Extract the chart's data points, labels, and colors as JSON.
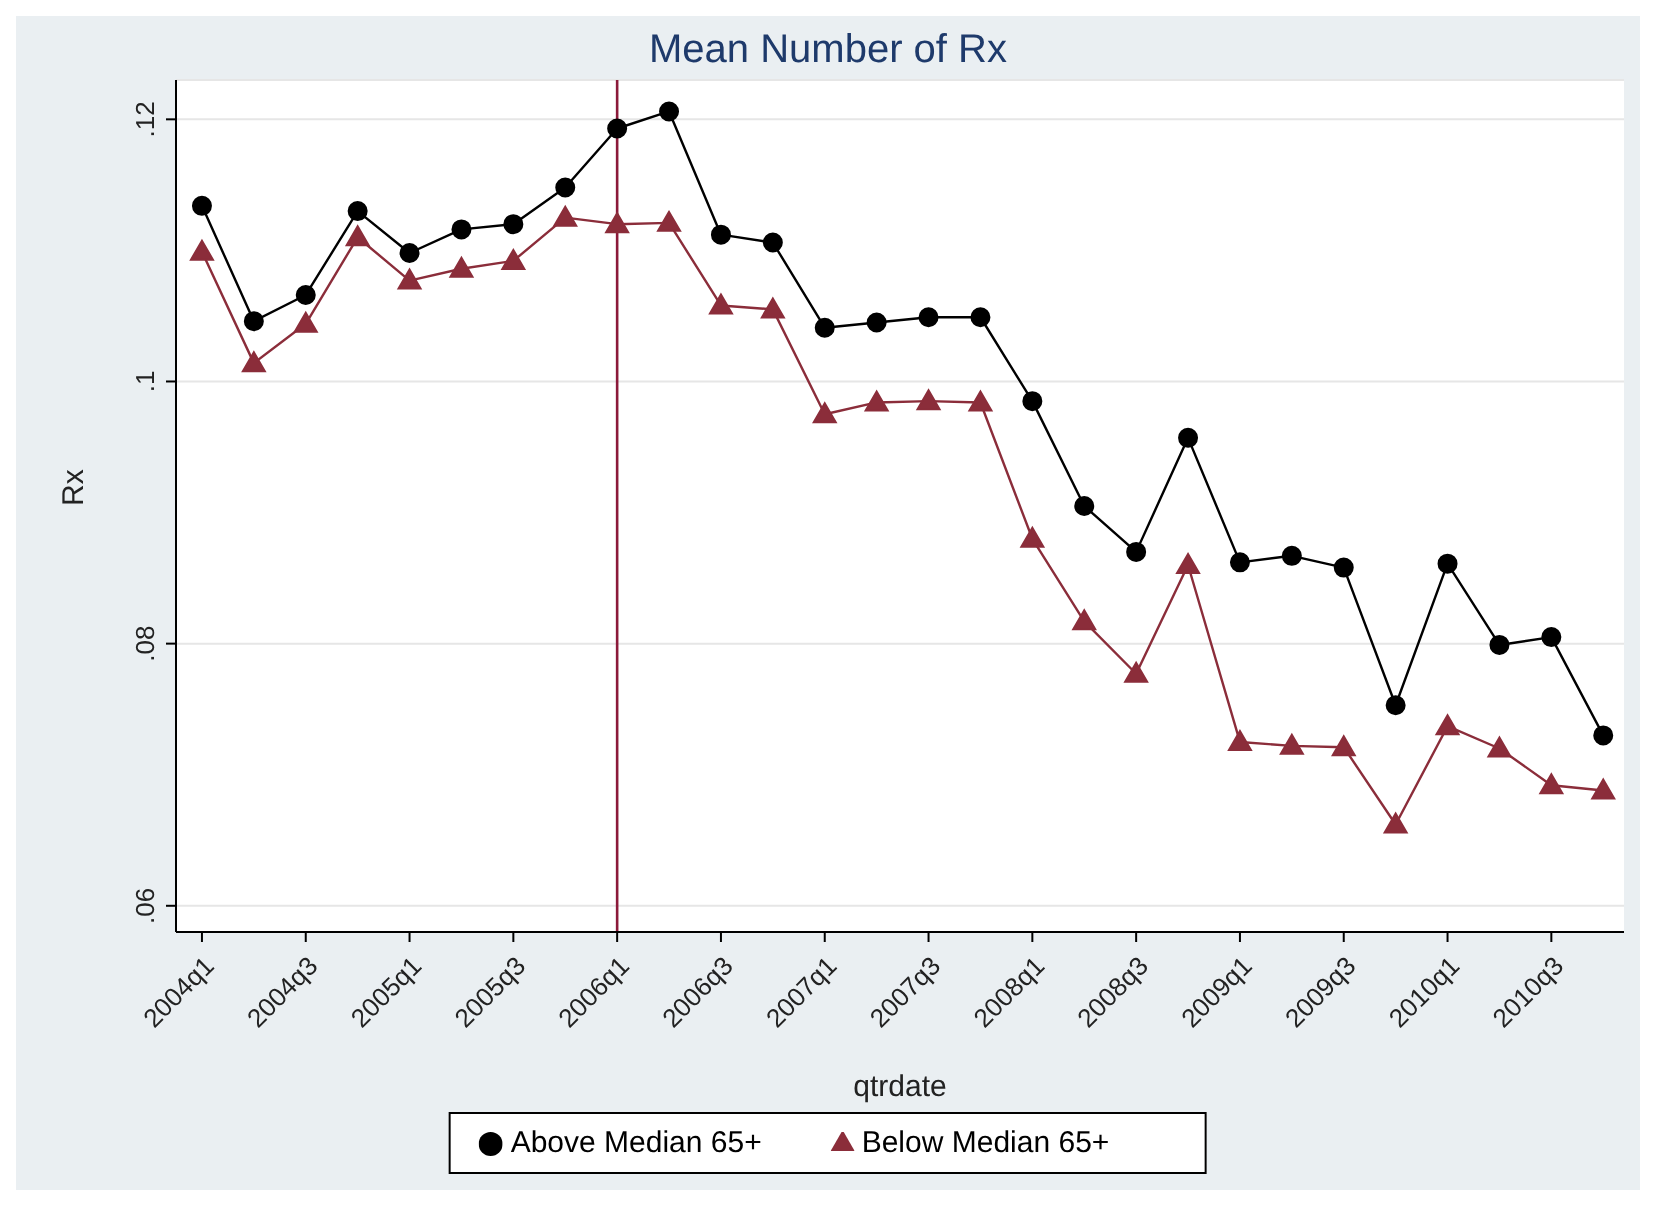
{
  "chart_data": {
    "type": "line",
    "title": "Mean Number of Rx",
    "xlabel": "qtrdate",
    "ylabel": "Rx",
    "categories": [
      "2004q1",
      null,
      "2004q3",
      null,
      "2005q1",
      null,
      "2005q3",
      null,
      "2006q1",
      null,
      "2006q3",
      null,
      "2007q1",
      null,
      "2007q3",
      null,
      "2008q1",
      null,
      "2008q3",
      null,
      "2009q1",
      null,
      "2009q3",
      null,
      "2010q1",
      null,
      "2010q3",
      null
    ],
    "series": [
      {
        "name": "Above Median 65+",
        "color": "#000000",
        "marker": "circle",
        "values": [
          0.1134,
          0.1046,
          0.1066,
          0.113,
          0.1098,
          0.1116,
          0.112,
          0.1148,
          0.1193,
          0.1206,
          0.1112,
          0.1106,
          0.1041,
          0.1045,
          0.1049,
          0.1049,
          0.0985,
          0.0905,
          0.087,
          0.0957,
          0.0862,
          0.0867,
          0.0858,
          0.0753,
          0.0861,
          0.0799,
          0.0805,
          0.073
        ]
      },
      {
        "name": "Below Median 65+",
        "color": "#8b2d3a",
        "marker": "triangle",
        "values": [
          0.1099,
          0.1014,
          0.1044,
          0.111,
          0.1077,
          0.1086,
          0.1092,
          0.1125,
          0.112,
          0.1121,
          0.1058,
          0.1055,
          0.0975,
          0.0984,
          0.0985,
          0.0984,
          0.088,
          0.0817,
          0.0777,
          0.086,
          0.0725,
          0.0722,
          0.0721,
          0.0662,
          0.0737,
          0.072,
          0.0692,
          0.0688
        ]
      }
    ],
    "ylim": [
      0.058,
      0.123
    ],
    "yticks": [
      {
        "value": 0.06,
        "label": ".06"
      },
      {
        "value": 0.08,
        "label": ".08"
      },
      {
        "value": 0.1,
        "label": ".1"
      },
      {
        "value": 0.12,
        "label": ".12"
      }
    ],
    "ref_lines": [
      {
        "axis": "x",
        "value": "2006q1",
        "color": "#8b1a3a"
      }
    ],
    "grid": "y",
    "legend": "bottom"
  }
}
